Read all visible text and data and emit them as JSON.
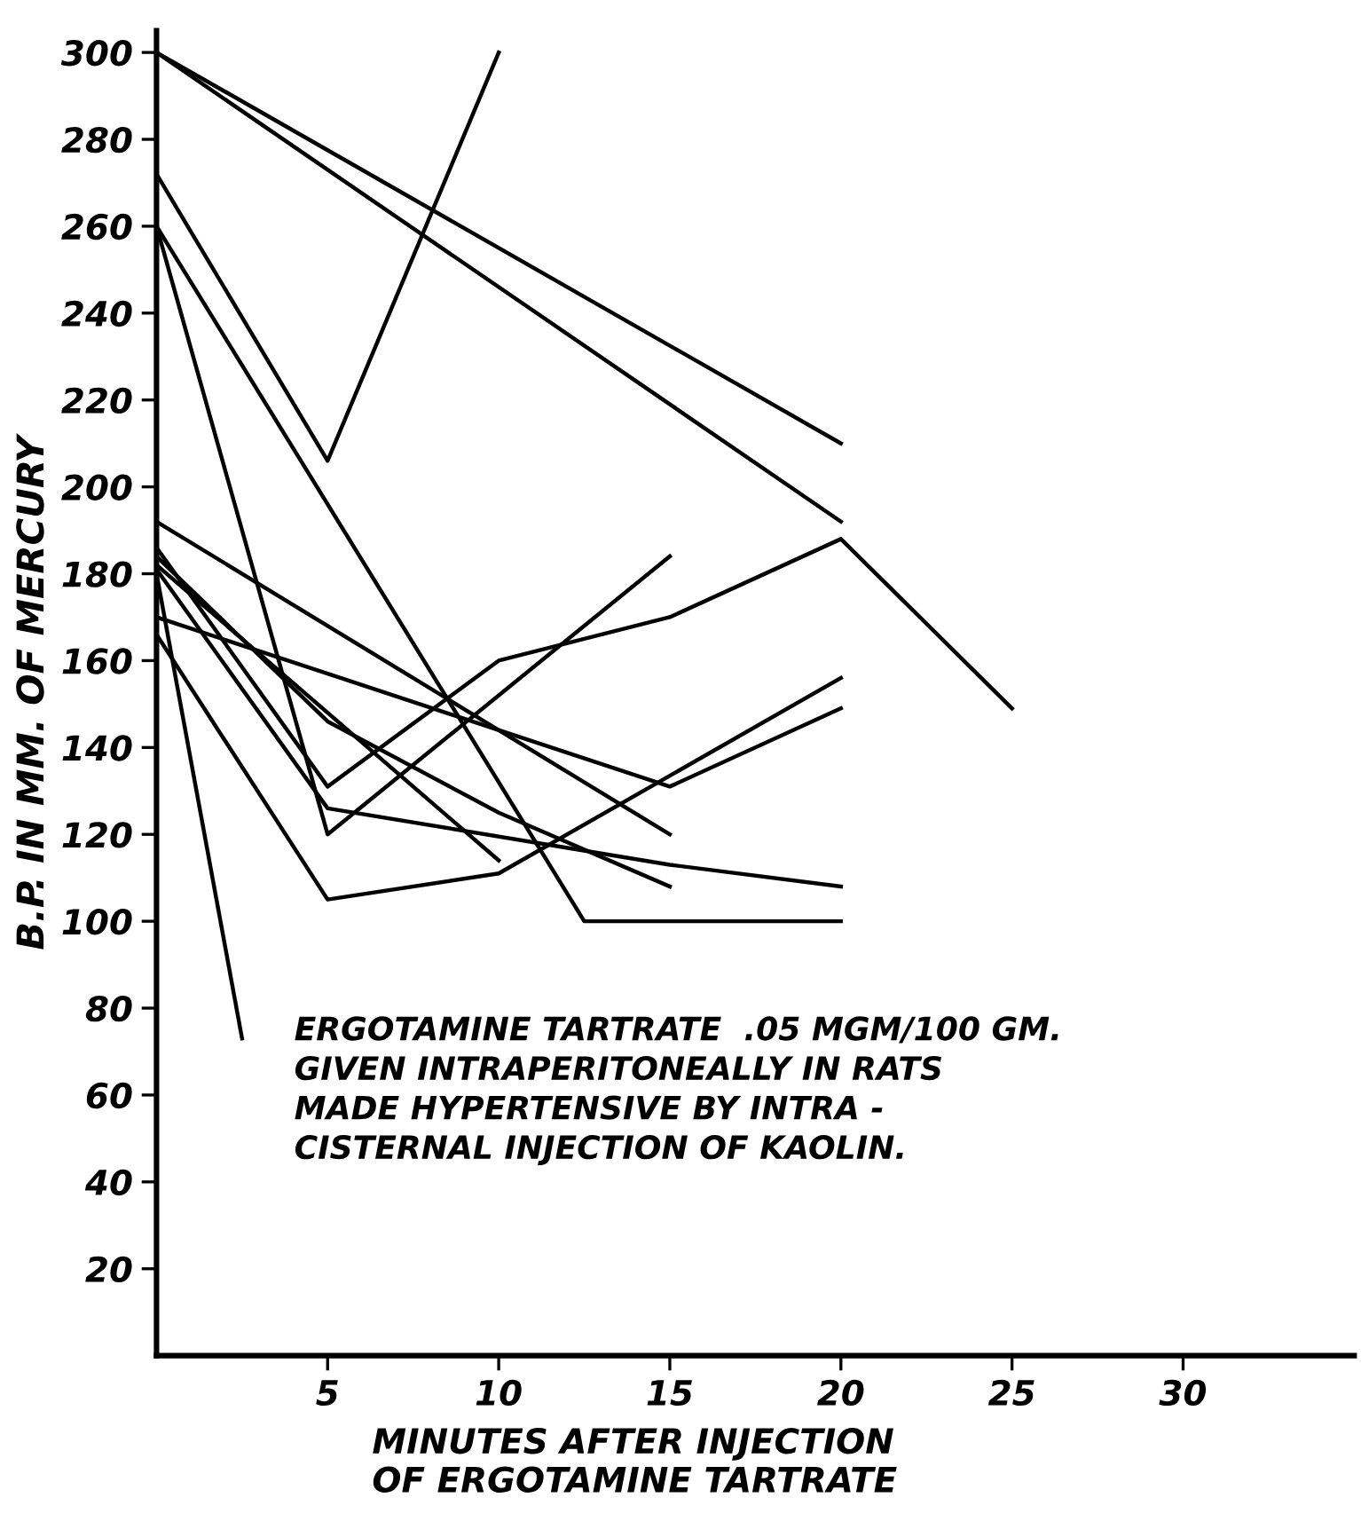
{
  "chart_data": {
    "type": "line",
    "xlabel": "MINUTES AFTER INJECTION\nOF ERGOTAMINE TARTRATE",
    "ylabel": "B.P. IN MM. OF MERCURY",
    "annotations": [
      "ERGOTAMINE TARTRATE  .05 MGM/100 GM.\nGIVEN INTRAPERITONEALLY IN RATS\nMADE HYPERTENSIVE BY INTRA -\nCISTERNAL INJECTION OF KAOLIN."
    ],
    "xlim": [
      0,
      35
    ],
    "xticks": [
      5,
      10,
      15,
      20,
      25,
      30
    ],
    "ylim": [
      0,
      305
    ],
    "yticks": [
      20,
      40,
      60,
      80,
      100,
      120,
      140,
      160,
      180,
      200,
      220,
      240,
      260,
      280,
      300
    ],
    "grid": false,
    "legend": false,
    "marker": "none",
    "line_style": "solid",
    "series": [
      {
        "color": "#000000",
        "x": [
          0,
          20
        ],
        "values": [
          300,
          210
        ]
      },
      {
        "color": "#000000",
        "x": [
          0,
          20
        ],
        "values": [
          300,
          192
        ]
      },
      {
        "color": "#000000",
        "x": [
          0,
          5,
          10
        ],
        "values": [
          272,
          206,
          300
        ]
      },
      {
        "color": "#000000",
        "x": [
          0,
          5,
          15
        ],
        "values": [
          260,
          120,
          184
        ]
      },
      {
        "color": "#000000",
        "x": [
          0,
          12.5,
          20
        ],
        "values": [
          260,
          100,
          100
        ]
      },
      {
        "color": "#000000",
        "x": [
          0,
          15
        ],
        "values": [
          192,
          120
        ]
      },
      {
        "color": "#000000",
        "x": [
          0,
          15,
          20
        ],
        "values": [
          170,
          131,
          149
        ]
      },
      {
        "color": "#000000",
        "x": [
          0,
          5,
          10,
          20
        ],
        "values": [
          166,
          105,
          111,
          156
        ]
      },
      {
        "color": "#000000",
        "x": [
          0,
          5,
          10,
          15,
          20,
          25
        ],
        "values": [
          186,
          131,
          160,
          170,
          188,
          149
        ]
      },
      {
        "color": "#000000",
        "x": [
          0,
          5,
          15,
          20
        ],
        "values": [
          181,
          126,
          113,
          108
        ]
      },
      {
        "color": "#000000",
        "x": [
          0,
          5,
          10,
          15
        ],
        "values": [
          184,
          146,
          125,
          108
        ]
      },
      {
        "color": "#000000",
        "x": [
          0,
          10
        ],
        "values": [
          182,
          114
        ]
      },
      {
        "color": "#000000",
        "x": [
          0,
          2.5
        ],
        "values": [
          180,
          73
        ]
      }
    ]
  }
}
